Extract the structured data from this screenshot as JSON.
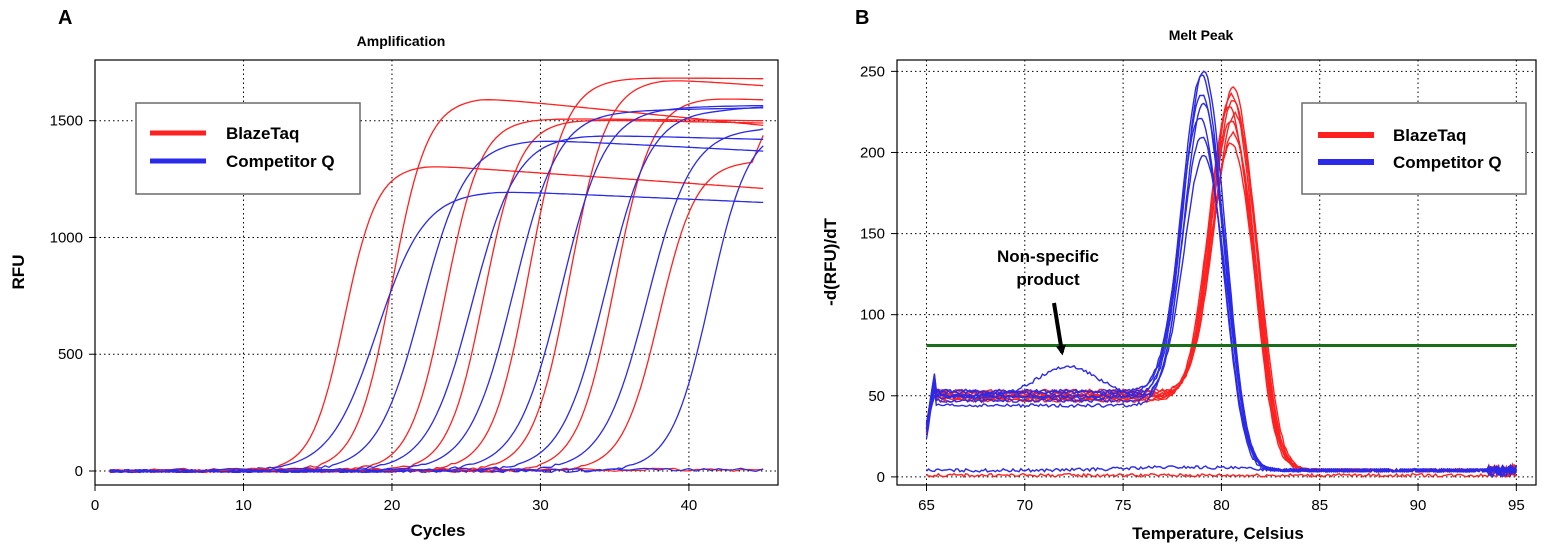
{
  "panels": [
    {
      "letter": "A",
      "title": "Amplification"
    },
    {
      "letter": "B",
      "title": "Melt Peak"
    }
  ],
  "colors": {
    "blazetaq": "#ff2020",
    "competitor": "#2a2ae8",
    "threshold": "#1a6e1a",
    "grid": "#000000"
  },
  "chart_data": [
    {
      "type": "line",
      "title": "Amplification",
      "xlabel": "Cycles",
      "ylabel": "RFU",
      "xlim": [
        0,
        46
      ],
      "ylim": [
        -60,
        1760
      ],
      "xticks": [
        0,
        10,
        20,
        30,
        40
      ],
      "yticks": [
        0,
        500,
        1000,
        1500
      ],
      "grid": true,
      "legend_position": "upper-left",
      "legend": [
        {
          "label": "BlazeTaq",
          "color": "#ff2020"
        },
        {
          "label": "Competitor Q",
          "color": "#2a2ae8"
        }
      ],
      "x_range": [
        1,
        45
      ],
      "series": [
        {
          "name": "BlazeTaq",
          "curves": [
            {
              "midpoint": 16.8,
              "slope": 1.1,
              "plateau": 1310,
              "final": 1210
            },
            {
              "midpoint": 20.0,
              "slope": 1.2,
              "plateau": 1600,
              "final": 1480
            },
            {
              "midpoint": 23.6,
              "slope": 1.2,
              "plateau": 1510,
              "final": 1500
            },
            {
              "midpoint": 26.2,
              "slope": 1.2,
              "plateau": 1505,
              "final": 1490
            },
            {
              "midpoint": 29.2,
              "slope": 1.25,
              "plateau": 1685,
              "final": 1680
            },
            {
              "midpoint": 32.0,
              "slope": 1.25,
              "plateau": 1680,
              "final": 1650
            },
            {
              "midpoint": 35.0,
              "slope": 1.25,
              "plateau": 1600,
              "final": 1590
            },
            {
              "midpoint": 38.0,
              "slope": 1.25,
              "plateau": 1330,
              "final": 1480
            }
          ]
        },
        {
          "name": "Competitor Q",
          "curves": [
            {
              "midpoint": 19.0,
              "slope": 1.6,
              "plateau": 1200,
              "final": 1150
            },
            {
              "midpoint": 22.0,
              "slope": 1.5,
              "plateau": 1420,
              "final": 1370
            },
            {
              "midpoint": 25.4,
              "slope": 1.5,
              "plateau": 1440,
              "final": 1420
            },
            {
              "midpoint": 28.2,
              "slope": 1.5,
              "plateau": 1545,
              "final": 1555
            },
            {
              "midpoint": 31.4,
              "slope": 1.5,
              "plateau": 1560,
              "final": 1565
            },
            {
              "midpoint": 34.4,
              "slope": 1.5,
              "plateau": 1550,
              "final": 1560
            },
            {
              "midpoint": 37.2,
              "slope": 1.5,
              "plateau": 1470,
              "final": 1480
            },
            {
              "midpoint": 41.4,
              "slope": 1.3,
              "plateau": 1480,
              "final": 1340
            }
          ]
        }
      ]
    },
    {
      "type": "line",
      "title": "Melt Peak",
      "xlabel": "Temperature, Celsius",
      "ylabel": "-d(RFU)/dT",
      "xlim": [
        63.5,
        96
      ],
      "ylim": [
        -5,
        257
      ],
      "xticks": [
        65,
        70,
        75,
        80,
        85,
        90,
        95
      ],
      "yticks": [
        0,
        50,
        100,
        150,
        200,
        250
      ],
      "grid": true,
      "legend_position": "upper-right",
      "legend": [
        {
          "label": "BlazeTaq",
          "color": "#ff2020"
        },
        {
          "label": "Competitor Q",
          "color": "#2a2ae8"
        }
      ],
      "threshold": {
        "y": 81,
        "x": [
          65,
          95
        ]
      },
      "annotation": {
        "text": [
          "Non-specific",
          "product"
        ],
        "points_to": [
          72.2,
          68
        ]
      },
      "x_range": [
        65,
        95
      ],
      "series": [
        {
          "name": "BlazeTaq",
          "curves": [
            {
              "peak_x": 80.6,
              "peak_y": 240,
              "baseline": 50,
              "sigma": 1.05
            },
            {
              "peak_x": 80.5,
              "peak_y": 236,
              "baseline": 48,
              "sigma": 1.05
            },
            {
              "peak_x": 80.6,
              "peak_y": 232,
              "baseline": 52,
              "sigma": 1.05
            },
            {
              "peak_x": 80.4,
              "peak_y": 228,
              "baseline": 47,
              "sigma": 1.05
            },
            {
              "peak_x": 80.7,
              "peak_y": 224,
              "baseline": 53,
              "sigma": 1.05
            },
            {
              "peak_x": 80.5,
              "peak_y": 220,
              "baseline": 49,
              "sigma": 1.05
            },
            {
              "peak_x": 80.6,
              "peak_y": 212,
              "baseline": 51,
              "sigma": 1.05
            },
            {
              "peak_x": 80.5,
              "peak_y": 206,
              "baseline": 50,
              "sigma": 1.05
            },
            {
              "peak_x": 80.4,
              "peak_y": 0,
              "baseline": 1,
              "sigma": 1.05
            }
          ]
        },
        {
          "name": "Competitor Q",
          "curves": [
            {
              "peak_x": 79.0,
              "peak_y": 248,
              "baseline": 52,
              "sigma": 1.0
            },
            {
              "peak_x": 79.0,
              "peak_y": 236,
              "baseline": 50,
              "sigma": 1.0
            },
            {
              "peak_x": 79.1,
              "peak_y": 230,
              "baseline": 47,
              "sigma": 1.0
            },
            {
              "peak_x": 78.9,
              "peak_y": 222,
              "baseline": 53,
              "sigma": 1.0
            },
            {
              "peak_x": 79.0,
              "peak_y": 210,
              "baseline": 44,
              "sigma": 1.0
            },
            {
              "peak_x": 79.1,
              "peak_y": 198,
              "baseline": 49,
              "sigma": 1.0
            },
            {
              "peak_x": 72.2,
              "peak_y": 68,
              "baseline": 50,
              "sigma": 1.5
            },
            {
              "peak_x": 78.0,
              "peak_y": 6,
              "baseline": 4,
              "sigma": 3.0
            }
          ]
        }
      ]
    }
  ]
}
